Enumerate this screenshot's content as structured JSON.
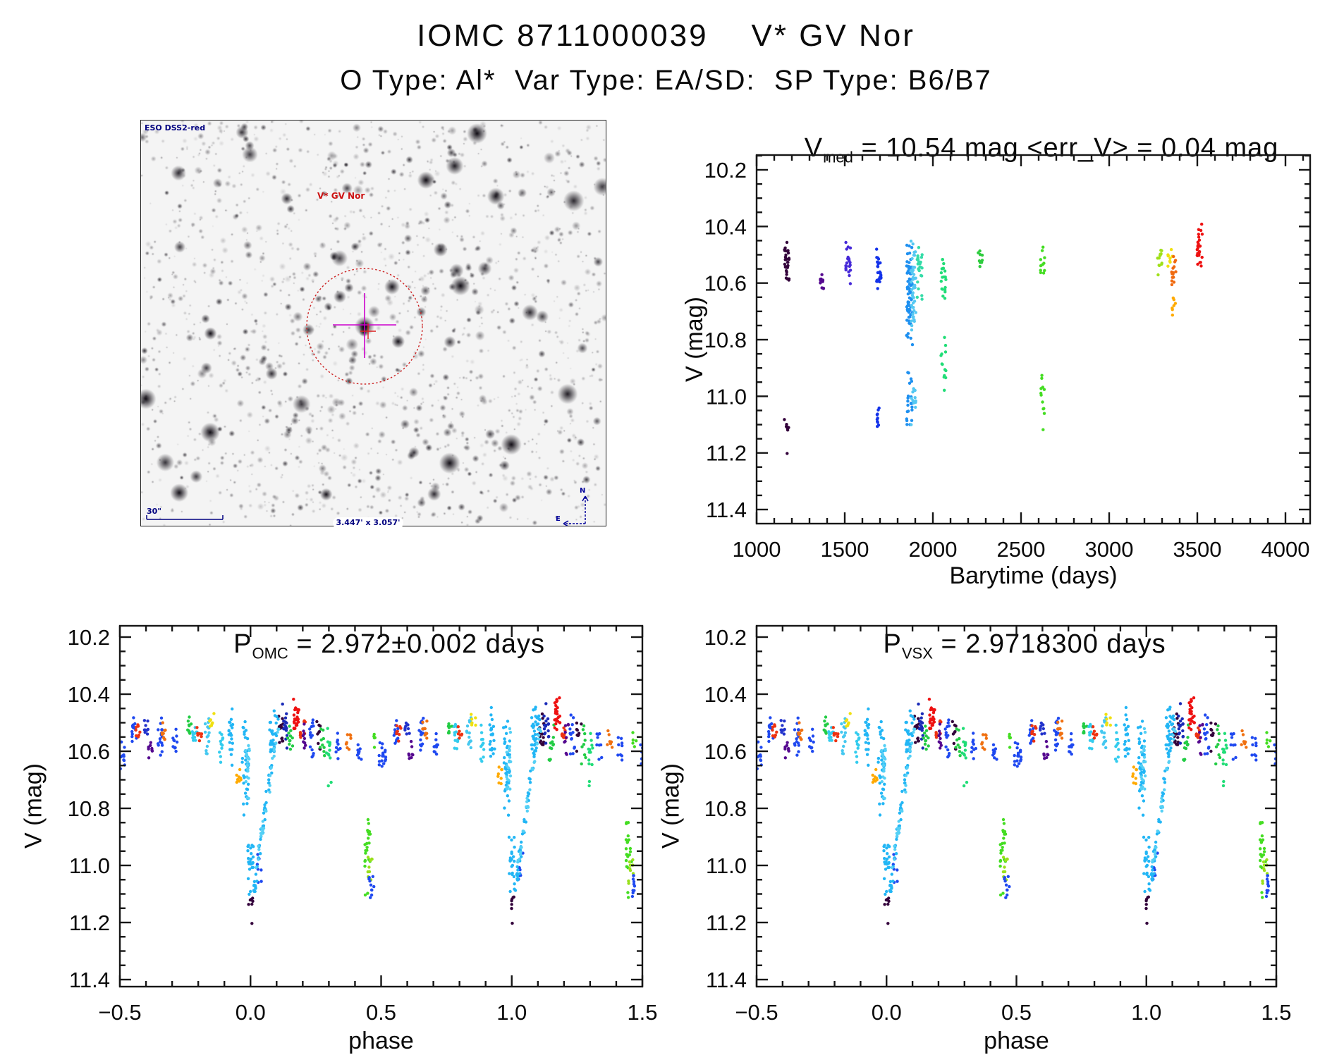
{
  "header": {
    "title": "IOMC 8711000039    V* GV Nor",
    "subtitle": "O Type: Al*  Var Type: EA/SD:  SP Type: B6/B7"
  },
  "sky_image": {
    "survey_label": "ESO DSS2-red",
    "target_label": "V* GV Nor",
    "scale_label": "30\"",
    "fov_label": "3.447' x 3.057'",
    "compass_north": "N",
    "compass_east": "E",
    "annotation_color": "#000080",
    "target_circle_color": "#cc2222",
    "marker_cross_color": "#cc00cc"
  },
  "chart_data": [
    {
      "id": "barytime",
      "type": "scatter",
      "title": "V_med = 10.54 mag <err_V> = 0.04 mag",
      "title_p1": "V",
      "title_sub": "med",
      "title_p2": " = 10.54 mag <err_V> = 0.04 mag",
      "xlabel": "Barytime (days)",
      "ylabel": "V (mag)",
      "xlim": [
        1000,
        4140
      ],
      "ylim": [
        10.15,
        11.45
      ],
      "y_axis_reversed": true,
      "grid": false,
      "xticks": [
        [
          1000,
          "1000"
        ],
        [
          1500,
          "1500"
        ],
        [
          2000,
          "2000"
        ],
        [
          2500,
          "2500"
        ],
        [
          3000,
          "3000"
        ],
        [
          3500,
          "3500"
        ],
        [
          4000,
          "4000"
        ]
      ],
      "yticks": [
        [
          10.2,
          "10.2"
        ],
        [
          10.4,
          "10.4"
        ],
        [
          10.6,
          "10.6"
        ],
        [
          10.8,
          "10.8"
        ],
        [
          11.0,
          "11.0"
        ],
        [
          11.2,
          "11.2"
        ],
        [
          11.4,
          "11.4"
        ]
      ],
      "xminor": 100,
      "yminor": 0.05,
      "repeat": [
        0
      ],
      "clusters": [
        {
          "x": 1170,
          "c": "#33023b",
          "s": [
            [
              10.43,
              10.63,
              30
            ],
            [
              11.08,
              11.14,
              7
            ],
            [
              11.2,
              11.205,
              1
            ]
          ]
        },
        {
          "x": 1372,
          "c": "#55088f",
          "s": [
            [
              10.56,
              10.63,
              11
            ]
          ]
        },
        {
          "x": 1520,
          "c": "#4629d8",
          "s": [
            [
              10.42,
              10.66,
              22
            ]
          ]
        },
        {
          "x": 1692,
          "c": "#1332ea",
          "s": [
            [
              10.46,
              10.63,
              26
            ],
            [
              11.03,
              11.13,
              10
            ]
          ]
        },
        {
          "x": 1868,
          "c": "#1e90f0",
          "w": 9,
          "s": [
            [
              10.44,
              10.85,
              70
            ],
            [
              10.86,
              11.13,
              22
            ]
          ]
        },
        {
          "x": 1890,
          "c": "#55c8f2",
          "w": 7,
          "s": [
            [
              10.42,
              10.82,
              48
            ],
            [
              10.95,
              11.12,
              13
            ]
          ]
        },
        {
          "x": 1925,
          "c": "#35dca8",
          "s": [
            [
              10.46,
              10.62,
              22
            ],
            [
              10.64,
              10.68,
              3
            ]
          ]
        },
        {
          "x": 2060,
          "c": "#21dd77",
          "s": [
            [
              10.49,
              10.68,
              20
            ],
            [
              10.79,
              11.02,
              13
            ]
          ]
        },
        {
          "x": 2268,
          "c": "#2ecc3e",
          "s": [
            [
              10.47,
              10.56,
              11
            ]
          ]
        },
        {
          "x": 2624,
          "c": "#44dd22",
          "s": [
            [
              10.47,
              10.58,
              11
            ],
            [
              10.9,
              11.1,
              11
            ],
            [
              11.12,
              11.13,
              1
            ]
          ]
        },
        {
          "x": 3288,
          "c": "#9fe018",
          "s": [
            [
              10.46,
              10.57,
              13
            ]
          ]
        },
        {
          "x": 3344,
          "c": "#f0e010",
          "s": [
            [
              10.47,
              10.55,
              9
            ]
          ]
        },
        {
          "x": 3362,
          "c": "#ffaa00",
          "s": [
            [
              10.65,
              10.73,
              7
            ]
          ]
        },
        {
          "x": 3368,
          "c": "#f06a10",
          "s": [
            [
              10.48,
              10.62,
              16
            ]
          ]
        },
        {
          "x": 3512,
          "c": "#ee1111",
          "w": 8,
          "s": [
            [
              10.39,
              10.58,
              28
            ]
          ]
        }
      ],
      "branches": []
    },
    {
      "id": "phase_omc",
      "type": "scatter",
      "title": "P_OMC = 2.972±0.002 days",
      "title_p1": "P",
      "title_sub": "OMC",
      "title_p2": " = 2.972±0.002 days",
      "xlabel": "phase",
      "ylabel": "V (mag)",
      "xlim": [
        -0.5,
        1.5
      ],
      "ylim": [
        10.16,
        11.43
      ],
      "y_axis_reversed": true,
      "grid": false,
      "xticks": [
        [
          -0.5,
          "−0.5"
        ],
        [
          0.0,
          "0.0"
        ],
        [
          0.5,
          "0.5"
        ],
        [
          1.0,
          "1.0"
        ],
        [
          1.5,
          "1.5"
        ]
      ],
      "yticks": [
        [
          10.2,
          "10.2"
        ],
        [
          10.4,
          "10.4"
        ],
        [
          10.6,
          "10.6"
        ],
        [
          10.8,
          "10.8"
        ],
        [
          11.0,
          "11.0"
        ],
        [
          11.2,
          "11.2"
        ],
        [
          11.4,
          "11.4"
        ]
      ],
      "xminor": 0.1,
      "yminor": 0.05,
      "repeat": [
        0,
        1
      ],
      "clusters": [
        {
          "p": -0.49,
          "c": "#1f49f0",
          "s": [
            [
              10.55,
              10.67,
              10
            ]
          ]
        },
        {
          "p": -0.445,
          "c": "#1f49f0",
          "s": [
            [
              10.47,
              10.58,
              14
            ]
          ]
        },
        {
          "p": -0.432,
          "c": "#ee3311",
          "s": [
            [
              10.49,
              10.57,
              8
            ]
          ]
        },
        {
          "p": -0.4,
          "c": "#2233cc",
          "s": [
            [
              10.48,
              10.56,
              9
            ]
          ]
        },
        {
          "p": -0.385,
          "c": "#55088f",
          "s": [
            [
              10.56,
              10.64,
              8
            ]
          ]
        },
        {
          "p": -0.345,
          "c": "#1f49f0",
          "s": [
            [
              10.46,
              10.63,
              16
            ]
          ]
        },
        {
          "p": -0.333,
          "c": "#f07010",
          "s": [
            [
              10.47,
              10.58,
              9
            ]
          ]
        },
        {
          "p": -0.29,
          "c": "#1f49f0",
          "s": [
            [
              10.52,
              10.64,
              11
            ]
          ]
        },
        {
          "p": -0.235,
          "c": "#22cc44",
          "s": [
            [
              10.47,
              10.56,
              9
            ]
          ]
        },
        {
          "p": -0.213,
          "c": "#33ccee",
          "s": [
            [
              10.48,
              10.6,
              11
            ]
          ]
        },
        {
          "p": -0.196,
          "c": "#ee3311",
          "s": [
            [
              10.5,
              10.58,
              8
            ]
          ]
        },
        {
          "p": -0.165,
          "c": "#44c8f0",
          "s": [
            [
              10.47,
              10.63,
              14
            ]
          ]
        },
        {
          "p": -0.147,
          "c": "#f0e010",
          "s": [
            [
              10.46,
              10.53,
              7
            ]
          ]
        },
        {
          "p": -0.115,
          "c": "#33ccee",
          "s": [
            [
              10.5,
              10.64,
              11
            ]
          ]
        },
        {
          "p": -0.075,
          "c": "#22b6f5",
          "s": [
            [
              10.44,
              10.66,
              20
            ]
          ]
        },
        {
          "p": -0.045,
          "c": "#ffaa00",
          "s": [
            [
              10.64,
              10.74,
              8
            ]
          ]
        },
        {
          "p": -0.02,
          "c": "#22b6f5",
          "w": 9,
          "s": [
            [
              10.47,
              10.86,
              38
            ]
          ]
        },
        {
          "p": -0.012,
          "c": "#55d0f5",
          "w": 6,
          "s": [
            [
              10.5,
              10.8,
              18
            ]
          ]
        },
        {
          "p": 0.0,
          "c": "#22b6f5",
          "w": 8,
          "s": [
            [
              10.86,
              11.13,
              22
            ]
          ]
        },
        {
          "p": 0.002,
          "c": "#33023b",
          "s": [
            [
              11.09,
              11.16,
              6
            ],
            [
              11.2,
              11.205,
              1
            ]
          ]
        },
        {
          "p": 0.035,
          "c": "#1f49f0",
          "s": [
            [
              10.95,
              11.08,
              8
            ]
          ]
        },
        {
          "p": 0.085,
          "c": "#22b6f5",
          "w": 9,
          "s": [
            [
              10.43,
              10.66,
              26
            ]
          ]
        },
        {
          "p": 0.115,
          "c": "#33023b",
          "s": [
            [
              10.44,
              10.62,
              14
            ]
          ]
        },
        {
          "p": 0.132,
          "c": "#1a2bb8",
          "s": [
            [
              10.43,
              10.62,
              16
            ]
          ]
        },
        {
          "p": 0.152,
          "c": "#22cc44",
          "s": [
            [
              10.49,
              10.64,
              11
            ]
          ]
        },
        {
          "p": 0.175,
          "c": "#ee1111",
          "w": 8,
          "s": [
            [
              10.4,
              10.56,
              24
            ]
          ]
        },
        {
          "p": 0.2,
          "c": "#ee3311",
          "s": [
            [
              10.48,
              10.58,
              9
            ]
          ]
        },
        {
          "p": 0.21,
          "c": "#55088f",
          "s": [
            [
              10.5,
              10.62,
              9
            ]
          ]
        },
        {
          "p": 0.232,
          "c": "#1f49f0",
          "s": [
            [
              10.46,
              10.63,
              14
            ]
          ]
        },
        {
          "p": 0.258,
          "c": "#33023b",
          "s": [
            [
              10.48,
              10.6,
              9
            ]
          ]
        },
        {
          "p": 0.276,
          "c": "#22cc44",
          "s": [
            [
              10.5,
              10.66,
              9
            ]
          ]
        },
        {
          "p": 0.3,
          "c": "#21dd77",
          "s": [
            [
              10.5,
              10.68,
              11
            ],
            [
              10.7,
              10.73,
              2
            ]
          ]
        },
        {
          "p": 0.335,
          "c": "#1f49f0",
          "s": [
            [
              10.52,
              10.64,
              9
            ]
          ]
        },
        {
          "p": 0.375,
          "c": "#f07010",
          "s": [
            [
              10.52,
              10.61,
              8
            ]
          ]
        },
        {
          "p": 0.415,
          "c": "#1f49f0",
          "s": [
            [
              10.54,
              10.67,
              9
            ]
          ]
        },
        {
          "p": 0.448,
          "c": "#44dd22",
          "w": 8,
          "s": [
            [
              10.79,
              11.05,
              20
            ],
            [
              11.08,
              11.12,
              2
            ]
          ]
        },
        {
          "p": 0.456,
          "c": "#99e01a",
          "s": [
            [
              10.93,
              11.08,
              9
            ]
          ]
        },
        {
          "p": 0.463,
          "c": "#1f49f0",
          "s": [
            [
              11.0,
              11.13,
              10
            ]
          ]
        },
        {
          "p": 0.47,
          "c": "#44dd22",
          "s": [
            [
              10.52,
              10.6,
              5
            ]
          ]
        },
        {
          "p": 0.5,
          "c": "#1f49f0",
          "s": [
            [
              10.55,
              10.67,
              9
            ]
          ]
        }
      ],
      "branches": [
        {
          "c": "#22b6f5",
          "from": [
            0.012,
            11.1
          ],
          "to": [
            0.105,
            10.48
          ],
          "n": 48,
          "pw": 0.01,
          "mw": 0.04
        },
        {
          "c": "#55d0f5",
          "from": [
            0.02,
            11.02
          ],
          "to": [
            0.11,
            10.5
          ],
          "n": 26,
          "pw": 0.008,
          "mw": 0.035
        }
      ]
    },
    {
      "id": "phase_vsx",
      "type": "scatter",
      "title": "P_VSX = 2.9718300 days",
      "title_p1": "P",
      "title_sub": "VSX",
      "title_p2": " = 2.9718300 days",
      "xlabel": "phase",
      "ylabel": "V (mag)",
      "xlim": [
        -0.5,
        1.5
      ],
      "ylim": [
        10.16,
        11.43
      ],
      "y_axis_reversed": true,
      "grid": false,
      "xticks": [
        [
          -0.5,
          "−0.5"
        ],
        [
          0.0,
          "0.0"
        ],
        [
          0.5,
          "0.5"
        ],
        [
          1.0,
          "1.0"
        ],
        [
          1.5,
          "1.5"
        ]
      ],
      "yticks": [
        [
          10.2,
          "10.2"
        ],
        [
          10.4,
          "10.4"
        ],
        [
          10.6,
          "10.6"
        ],
        [
          10.8,
          "10.8"
        ],
        [
          11.0,
          "11.0"
        ],
        [
          11.2,
          "11.2"
        ],
        [
          11.4,
          "11.4"
        ]
      ],
      "xminor": 0.1,
      "yminor": 0.05,
      "repeat": [
        0,
        1
      ],
      "clusters_ref": "phase_omc"
    }
  ]
}
